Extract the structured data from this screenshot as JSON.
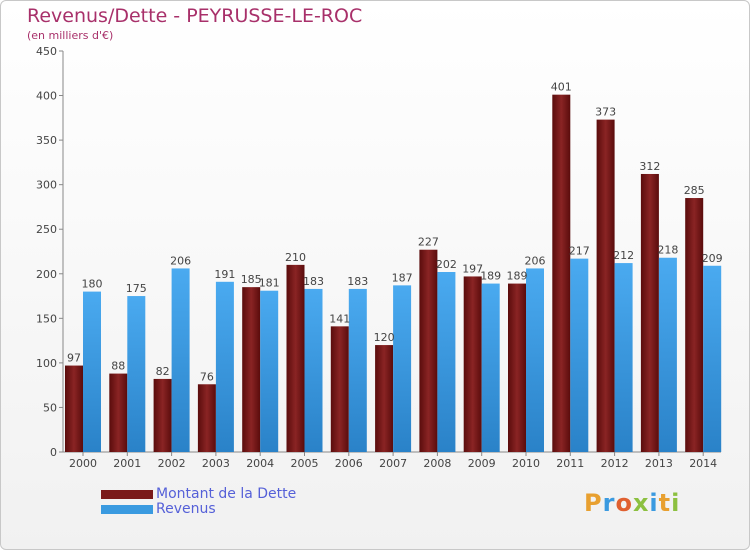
{
  "chart_data": {
    "type": "bar",
    "title": "Revenus/Dette - PEYRUSSE-LE-ROC",
    "subtitle": "(en milliers d'€)",
    "categories": [
      "2000",
      "2001",
      "2002",
      "2003",
      "2004",
      "2005",
      "2006",
      "2007",
      "2008",
      "2009",
      "2010",
      "2011",
      "2012",
      "2013",
      "2014"
    ],
    "series": [
      {
        "name": "Montant de la Dette",
        "color": "#7a1a1a",
        "values": [
          97,
          88,
          82,
          76,
          185,
          210,
          141,
          120,
          227,
          197,
          189,
          401,
          373,
          312,
          285
        ]
      },
      {
        "name": "Revenus",
        "color": "#3a9ae0",
        "values": [
          180,
          175,
          206,
          191,
          181,
          183,
          183,
          187,
          202,
          189,
          206,
          217,
          212,
          218,
          209
        ]
      }
    ],
    "yticks": [
      0,
      50,
      100,
      150,
      200,
      250,
      300,
      350,
      400,
      450
    ],
    "ylim": [
      0,
      450
    ],
    "grid": false,
    "legend_position": "bottom-left"
  },
  "logo": {
    "letters": [
      "P",
      "r",
      "o",
      "x",
      "i",
      "t",
      "i"
    ],
    "colors": [
      "#e8a030",
      "#3a9ae0",
      "#e06030",
      "#8cc040",
      "#3a9ae0",
      "#e8a030",
      "#8cc040"
    ]
  }
}
